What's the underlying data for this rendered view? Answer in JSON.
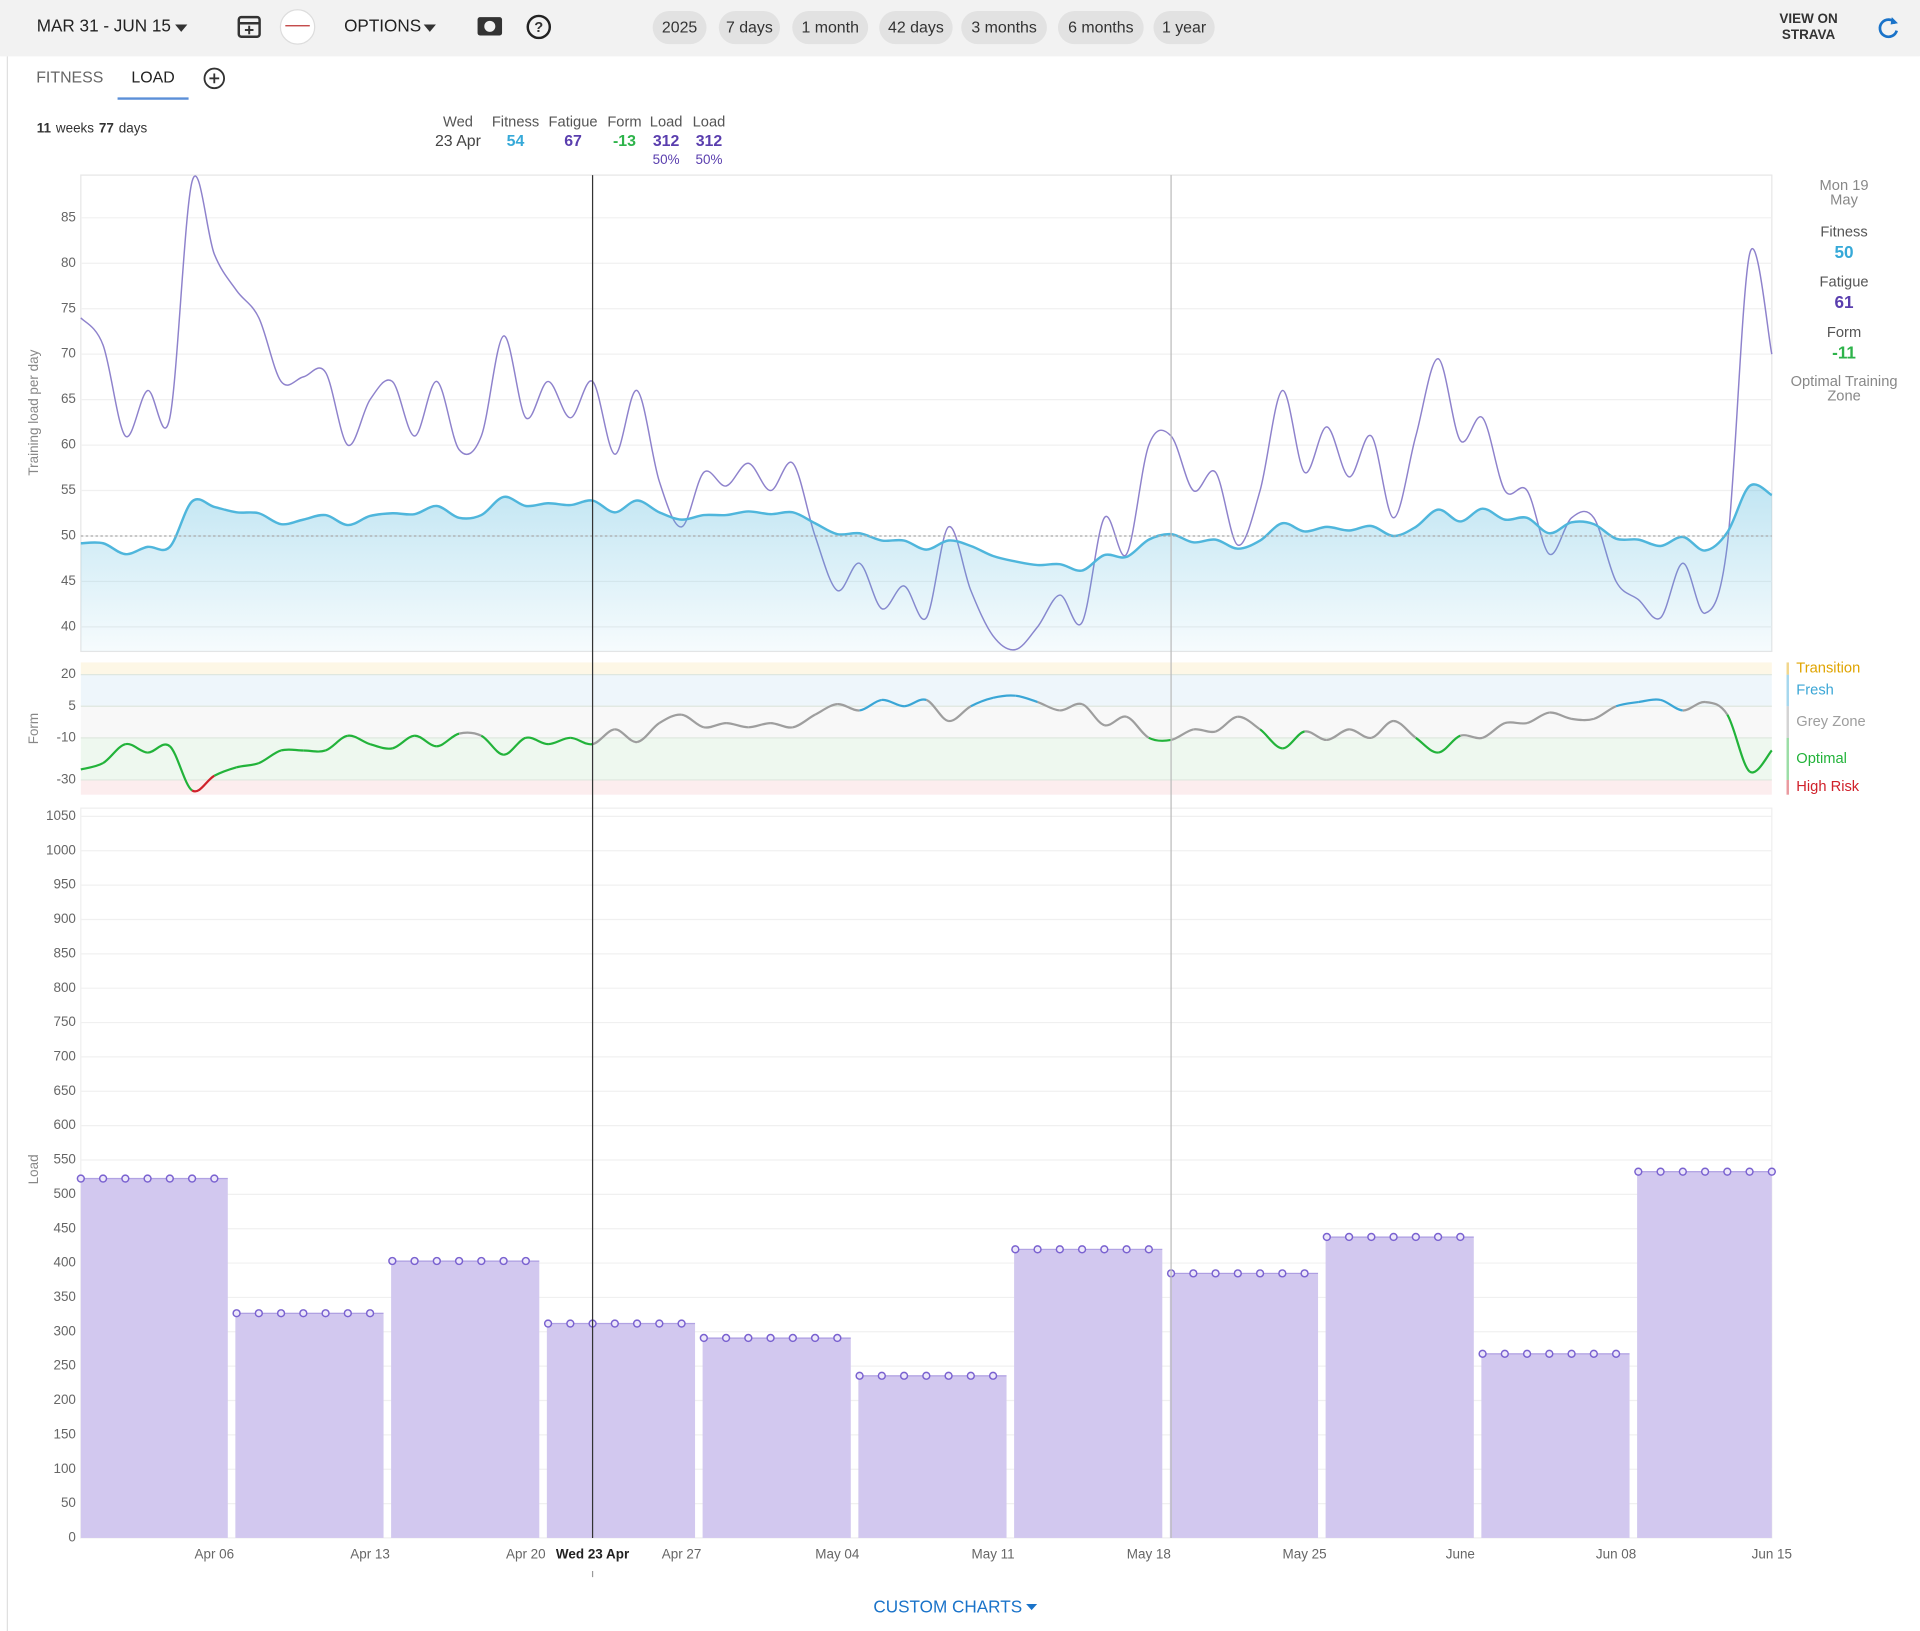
{
  "toolbar": {
    "date_range": "MAR 31 - JUN 15",
    "options": "OPTIONS",
    "periods": [
      "2025",
      "7 days",
      "1 month",
      "42 days",
      "3 months",
      "6 months",
      "1 year"
    ],
    "strava": [
      "VIEW ON",
      "STRAVA"
    ]
  },
  "tabs": [
    "FITNESS",
    "LOAD"
  ],
  "summary": {
    "weeks": 11,
    "weeks_label": "weeks",
    "days": 77,
    "days_label": "days"
  },
  "tooltip": {
    "weekday": "Wed",
    "date": "23 Apr",
    "items": [
      {
        "label": "Fitness",
        "value": 54,
        "color": "#36a9d8"
      },
      {
        "label": "Fatigue",
        "value": 67,
        "color": "#5a3eae"
      },
      {
        "label": "Form",
        "value": -13,
        "color": "#2db34a"
      },
      {
        "label": "Load",
        "value": 312,
        "share": "50%",
        "color": "#5a3eae"
      },
      {
        "label": "Load",
        "value": 312,
        "share": "50%",
        "color": "#5a3eae"
      }
    ]
  },
  "side_panel": {
    "date": [
      "Mon 19",
      "May"
    ],
    "items": [
      {
        "label": "Fitness",
        "value": 50,
        "color": "#36a9d8"
      },
      {
        "label": "Fatigue",
        "value": 61,
        "color": "#5a3eae"
      },
      {
        "label": "Form",
        "value": -11,
        "color": "#2db34a"
      }
    ],
    "zone": [
      "Optimal Training",
      "Zone"
    ]
  },
  "x_axis": {
    "categories": [
      null,
      null,
      null,
      null,
      null,
      null,
      "Apr 06",
      null,
      null,
      null,
      null,
      null,
      null,
      "Apr 13",
      null,
      null,
      null,
      null,
      null,
      null,
      "Apr 20",
      null,
      null,
      null,
      null,
      null,
      null,
      "Apr 27",
      null,
      null,
      null,
      null,
      null,
      null,
      "May 04",
      null,
      null,
      null,
      null,
      null,
      null,
      "May 11",
      null,
      null,
      null,
      null,
      null,
      null,
      "May 18",
      null,
      null,
      null,
      null,
      null,
      null,
      "May 25",
      null,
      null,
      null,
      null,
      null,
      null,
      "June",
      null,
      null,
      null,
      null,
      null,
      null,
      "Jun 08",
      null,
      null,
      null,
      null,
      null,
      null,
      "Jun 15"
    ],
    "cursor_label": "Wed 23 Apr"
  },
  "fitness_chart": {
    "type": "line",
    "ylabel": "Training load per day",
    "ylim": [
      37.3,
      89.7
    ],
    "yticks": [
      40,
      45,
      50,
      55,
      60,
      65,
      70,
      75,
      80,
      85
    ],
    "reference_line": 50,
    "series": [
      {
        "name": "Fatigue",
        "color": "#8e82cc",
        "values": [
          74,
          71,
          61,
          66,
          63,
          89,
          81,
          77,
          74,
          67,
          67.5,
          68,
          60,
          65,
          67,
          61,
          67,
          59.5,
          61,
          72,
          63,
          67,
          63,
          67,
          59,
          66,
          56,
          51,
          57,
          55.5,
          58,
          55,
          58,
          50,
          44,
          47,
          42,
          44.5,
          41,
          51,
          44,
          39,
          37.5,
          40,
          43.5,
          40.5,
          52,
          48,
          60,
          61,
          55,
          57,
          49,
          55,
          66,
          57,
          62,
          56.5,
          61,
          52,
          61,
          69.5,
          60.5,
          63,
          55,
          55,
          48,
          52,
          52,
          45,
          43,
          41,
          47,
          41.5,
          49,
          81,
          70
        ]
      },
      {
        "name": "Fitness",
        "color": "#4fb6dc",
        "area": true,
        "values": [
          49.2,
          49.2,
          48,
          48.8,
          48.8,
          53.8,
          53.2,
          52.6,
          52.5,
          51.3,
          51.8,
          52.3,
          51.2,
          52.2,
          52.5,
          52.4,
          53.3,
          52,
          52.3,
          54.3,
          53.3,
          53.6,
          53.4,
          53.9,
          52.6,
          53.9,
          52.6,
          51.8,
          52.3,
          52.3,
          52.7,
          52.4,
          52.6,
          51.4,
          50.2,
          50.3,
          49.5,
          49.5,
          48.5,
          49.5,
          48.9,
          47.8,
          47.2,
          46.8,
          46.9,
          46.2,
          47.9,
          47.7,
          49.6,
          50.2,
          49.3,
          49.6,
          48.6,
          49.5,
          51.4,
          50.5,
          51,
          50.6,
          51.1,
          50,
          51,
          52.9,
          51.6,
          53,
          51.8,
          52,
          50.3,
          51.5,
          51.3,
          49.7,
          49.6,
          48.9,
          49.9,
          48.4,
          50.4,
          55.5,
          54.5
        ]
      }
    ]
  },
  "form_chart": {
    "type": "line",
    "ylabel": "Form",
    "ylim": [
      -37,
      25.8
    ],
    "yticks": [
      20,
      5,
      -10,
      -30
    ],
    "zones": [
      {
        "name": "Transition",
        "color": "#e0a400",
        "band_color": "#fdf7e6",
        "min": 20
      },
      {
        "name": "Fresh",
        "color": "#3aa6d6",
        "band_color": "#eef6fb",
        "min": 5,
        "max": 20
      },
      {
        "name": "Grey Zone",
        "color": "#9e9e9e",
        "band_color": "#f8f8f8",
        "min": -10,
        "max": 5
      },
      {
        "name": "Optimal",
        "color": "#22b33a",
        "band_color": "#eef8ef",
        "min": -30,
        "max": -10
      },
      {
        "name": "High Risk",
        "color": "#d0202a",
        "band_color": "#fcedee",
        "max": -30
      }
    ],
    "values": [
      -25,
      -22,
      -13,
      -17,
      -14,
      -35,
      -28,
      -24,
      -22,
      -16,
      -16,
      -16,
      -9,
      -13,
      -15,
      -9,
      -14,
      -8,
      -9,
      -18,
      -10,
      -13,
      -10,
      -13,
      -6,
      -12,
      -3,
      1,
      -5,
      -3,
      -5,
      -3,
      -5,
      1,
      6,
      3,
      8,
      5,
      8,
      -2,
      5,
      9,
      10,
      7,
      3,
      6,
      -4,
      0,
      -10,
      -11,
      -6,
      -7,
      0,
      -6,
      -15,
      -7,
      -11,
      -6,
      -10,
      -2,
      -10,
      -17,
      -9,
      -10,
      -3,
      -3,
      2,
      -1,
      -1,
      5,
      7,
      8,
      3,
      7,
      1,
      -26,
      -16
    ]
  },
  "load_chart": {
    "type": "bar",
    "ylabel": "Load",
    "ylim": [
      0,
      1062
    ],
    "yticks": [
      0,
      50,
      100,
      150,
      200,
      250,
      300,
      350,
      400,
      450,
      500,
      550,
      600,
      650,
      700,
      750,
      800,
      850,
      900,
      950,
      1000,
      1050
    ],
    "color": "#d2c8ef",
    "line_color": "#7a62d0",
    "values": [
      523,
      327,
      403,
      312,
      291,
      236,
      420,
      385,
      438,
      268,
      533
    ]
  },
  "footer": "CUSTOM CHARTS"
}
